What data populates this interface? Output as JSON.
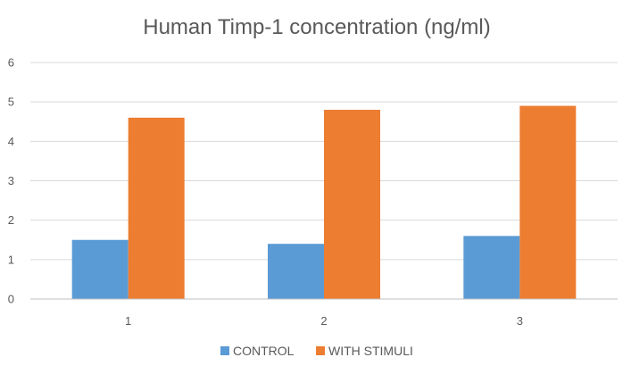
{
  "chart_data": {
    "type": "bar",
    "title": "Human Timp-1 concentration (ng/ml)",
    "xlabel": "",
    "ylabel": "",
    "categories": [
      "1",
      "2",
      "3"
    ],
    "series": [
      {
        "name": "CONTROL",
        "color": "#5b9bd5",
        "values": [
          1.5,
          1.4,
          1.6
        ]
      },
      {
        "name": "WITH STIMULI",
        "color": "#ed7d31",
        "values": [
          4.6,
          4.8,
          4.9
        ]
      }
    ],
    "ylim": [
      0,
      6
    ],
    "yticks": [
      "0",
      "1",
      "2",
      "3",
      "4",
      "5",
      "6"
    ],
    "grid": true,
    "legend_position": "bottom"
  }
}
